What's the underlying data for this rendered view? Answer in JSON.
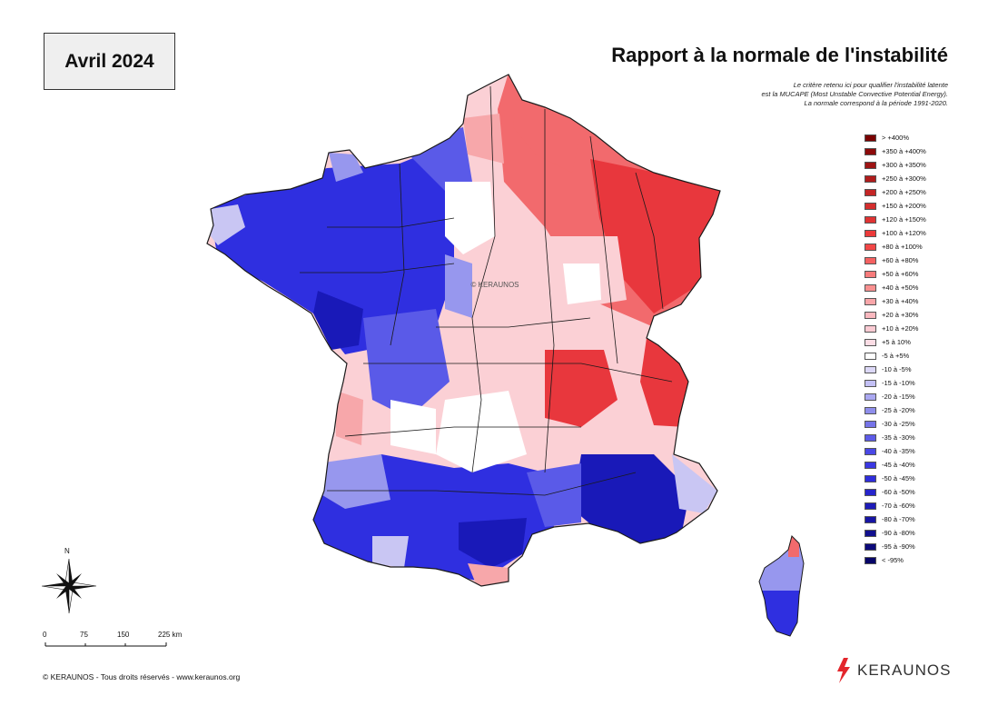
{
  "header": {
    "date": "Avril 2024",
    "title": "Rapport à la normale de l'instabilité",
    "subtitle_lines": [
      "Le critère retenu ici pour qualifier l'instabilité latente",
      "est la MUCAPE (Most Unstable Convective Potential Energy).",
      "La normale correspond à la période 1991-2020."
    ]
  },
  "map": {
    "watermark": "© KERAUNOS",
    "colors": {
      "border": "#1a1a1a",
      "red_strong": "#e8373d",
      "red_mid": "#f26a6d",
      "red_light": "#f7a7aa",
      "pink": "#fbd0d5",
      "white": "#ffffff",
      "lav": "#c9c6f3",
      "blue_light": "#9797ee",
      "blue_mid": "#5a5ae8",
      "blue_strong": "#2f2fe0",
      "blue_deep": "#1919b8"
    }
  },
  "legend": {
    "items": [
      {
        "label": "> +400%",
        "color": "#7a0000"
      },
      {
        "label": "+350 à +400%",
        "color": "#8c0a0a"
      },
      {
        "label": "+300 à +350%",
        "color": "#9e1414"
      },
      {
        "label": "+250 à +300%",
        "color": "#b01c1c"
      },
      {
        "label": "+200 à +250%",
        "color": "#c42626"
      },
      {
        "label": "+150 à +200%",
        "color": "#d42e2e"
      },
      {
        "label": "+120 à +150%",
        "color": "#e03333"
      },
      {
        "label": "+100 à +120%",
        "color": "#ec3a3a"
      },
      {
        "label": "+80 à +100%",
        "color": "#f24747"
      },
      {
        "label": "+60 à +80%",
        "color": "#f56161"
      },
      {
        "label": "+50 à +60%",
        "color": "#f77b7b"
      },
      {
        "label": "+40 à +50%",
        "color": "#f99090"
      },
      {
        "label": "+30 à +40%",
        "color": "#f9a6a9"
      },
      {
        "label": "+20 à +30%",
        "color": "#fab8bf"
      },
      {
        "label": "+10 à +20%",
        "color": "#fbcbd3"
      },
      {
        "label": "+5 à 10%",
        "color": "#fcdde5"
      },
      {
        "label": "-5 à +5%",
        "color": "#ffffff"
      },
      {
        "label": "-10 à -5%",
        "color": "#dcd8f7"
      },
      {
        "label": "-15 à -10%",
        "color": "#c3c0f5"
      },
      {
        "label": "-20 à -15%",
        "color": "#aaa8f1"
      },
      {
        "label": "-25 à -20%",
        "color": "#8f8eec"
      },
      {
        "label": "-30 à -25%",
        "color": "#7674e8"
      },
      {
        "label": "-35 à -30%",
        "color": "#5d5be7"
      },
      {
        "label": "-40 à -35%",
        "color": "#4a48e6"
      },
      {
        "label": "-45 à -40%",
        "color": "#3b38e2"
      },
      {
        "label": "-50 à -45%",
        "color": "#2f2ddc"
      },
      {
        "label": "-60 à -50%",
        "color": "#2624cc"
      },
      {
        "label": "-70 à -60%",
        "color": "#1e1cb8"
      },
      {
        "label": "-80 à -70%",
        "color": "#1715a4"
      },
      {
        "label": "-90 à -80%",
        "color": "#110f8e"
      },
      {
        "label": "-95 à -90%",
        "color": "#0c0a7a"
      },
      {
        "label": "< -95%",
        "color": "#070568"
      }
    ]
  },
  "compass": {
    "north_label": "N"
  },
  "scale": {
    "labels": [
      "0",
      "75",
      "150",
      "225 km"
    ]
  },
  "footer": {
    "copyright": "© KERAUNOS - Tous droits réservés - www.keraunos.org",
    "brand": "KERAUNOS",
    "brand_color": "#e3262c"
  }
}
